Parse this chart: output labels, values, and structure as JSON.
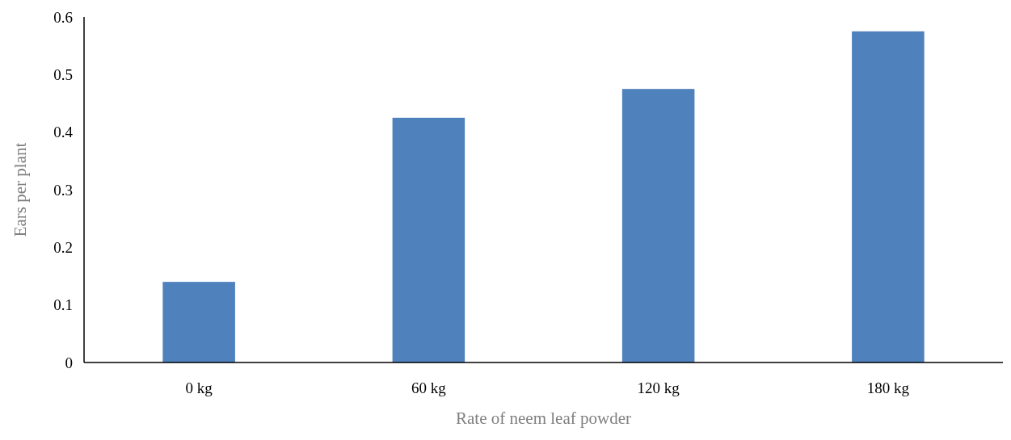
{
  "chart_data": {
    "type": "bar",
    "xlabel": "Rate of neem leaf powder",
    "ylabel": "Ears per plant",
    "categories": [
      "0 kg",
      "60 kg",
      "120 kg",
      "180 kg"
    ],
    "values": [
      0.14,
      0.425,
      0.475,
      0.575
    ],
    "color": "#4f81bd",
    "ylim": [
      0,
      0.6
    ],
    "yticks": [
      0,
      0.1,
      0.2,
      0.3,
      0.4,
      0.5,
      0.6
    ],
    "grid": false
  }
}
